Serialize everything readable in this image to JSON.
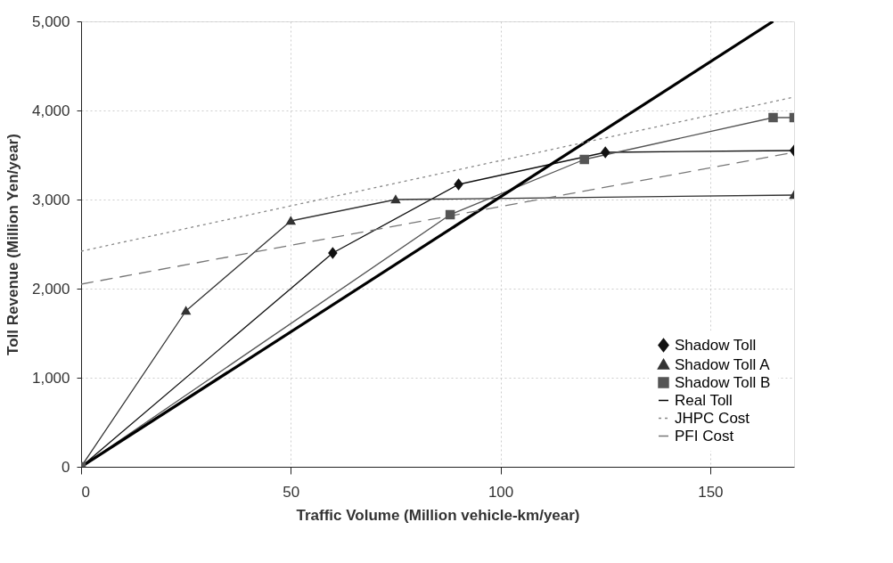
{
  "chart_data": {
    "type": "line",
    "xlabel": "Traffic Volume (Million vehicle-km/year)",
    "ylabel": "Toll Revenue (Million Yen/year)",
    "xlim": [
      0,
      170
    ],
    "ylim": [
      0,
      5000
    ],
    "xticks": [
      0,
      50,
      100,
      150
    ],
    "yticks": [
      0,
      {
        "value": 1000,
        "label": "1,000"
      },
      {
        "value": 2000,
        "label": "2,000"
      },
      {
        "value": 3000,
        "label": "3,000"
      },
      {
        "value": 4000,
        "label": "4,000"
      },
      {
        "value": 5000,
        "label": "5,000"
      }
    ],
    "grid": true,
    "legend": "bottom right",
    "series": [
      {
        "name": "Shadow Toll",
        "color": "#111111",
        "marker": "diamond",
        "line_style": "solid",
        "x": [
          0,
          60,
          90,
          125,
          170
        ],
        "values": [
          0,
          2400,
          3170,
          3530,
          3550
        ]
      },
      {
        "name": "Shadow Toll A",
        "color": "#333333",
        "marker": "triangle",
        "line_style": "solid",
        "x": [
          0,
          25,
          50,
          75,
          170
        ],
        "values": [
          0,
          1750,
          2760,
          3000,
          3050
        ]
      },
      {
        "name": "Shadow Toll B",
        "color": "#555555",
        "marker": "square",
        "line_style": "solid",
        "x": [
          0,
          88,
          120,
          165,
          170
        ],
        "values": [
          0,
          2830,
          3450,
          3920,
          3920
        ]
      },
      {
        "name": "Real Toll",
        "color": "#000000",
        "marker": "none",
        "line_style": "solid",
        "x": [
          0,
          165
        ],
        "values": [
          0,
          5000
        ]
      },
      {
        "name": "JHPC Cost",
        "color": "#888888",
        "marker": "none",
        "line_style": "dotted",
        "x": [
          0,
          170
        ],
        "values": [
          2420,
          4150
        ]
      },
      {
        "name": "PFI Cost",
        "color": "#777777",
        "marker": "none",
        "line_style": "dashed",
        "x": [
          0,
          170
        ],
        "values": [
          2050,
          3530
        ]
      }
    ]
  }
}
